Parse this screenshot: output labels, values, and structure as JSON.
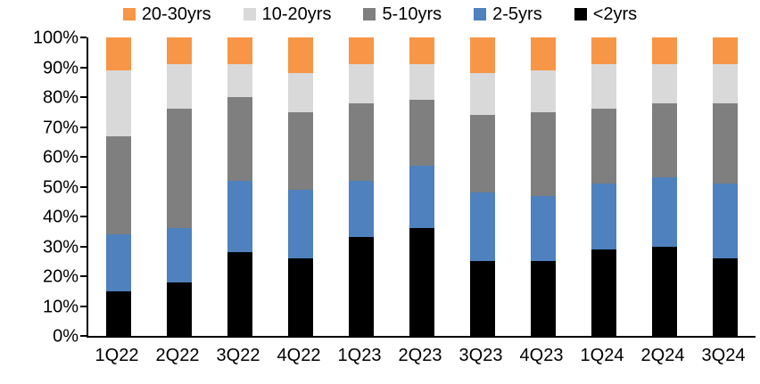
{
  "chart_data": {
    "type": "bar",
    "variant": "stacked-100-percent",
    "title": "",
    "xlabel": "",
    "ylabel": "",
    "categories": [
      "1Q22",
      "2Q22",
      "3Q22",
      "4Q22",
      "1Q23",
      "2Q23",
      "3Q23",
      "4Q23",
      "1Q24",
      "2Q24",
      "3Q24"
    ],
    "series": [
      {
        "name": "<2yrs",
        "color": "#000000",
        "values": [
          15,
          18,
          28,
          26,
          33,
          36,
          25,
          25,
          29,
          30,
          26
        ]
      },
      {
        "name": "2-5yrs",
        "color": "#4E81BD",
        "values": [
          19,
          18,
          24,
          23,
          19,
          21,
          23,
          22,
          22,
          23,
          25
        ]
      },
      {
        "name": "5-10yrs",
        "color": "#7F7F7F",
        "values": [
          33,
          40,
          28,
          26,
          26,
          22,
          26,
          28,
          25,
          25,
          27
        ]
      },
      {
        "name": "10-20yrs",
        "color": "#D9D9D9",
        "values": [
          22,
          15,
          11,
          13,
          13,
          12,
          14,
          14,
          15,
          13,
          13
        ]
      },
      {
        "name": "20-30yrs",
        "color": "#F79646",
        "values": [
          11,
          9,
          9,
          12,
          9,
          9,
          12,
          11,
          9,
          9,
          9
        ]
      }
    ],
    "legend": {
      "position": "top",
      "order": [
        "20-30yrs",
        "10-20yrs",
        "5-10yrs",
        "2-5yrs",
        "<2yrs"
      ]
    },
    "y_axis": {
      "min": 0,
      "max": 100,
      "step": 10,
      "format": "percent",
      "tick_labels": [
        "0%",
        "10%",
        "20%",
        "30%",
        "40%",
        "50%",
        "60%",
        "70%",
        "80%",
        "90%",
        "100%"
      ]
    },
    "grid": false,
    "axis_color": "#000000",
    "background_color": "#FFFFFF"
  }
}
